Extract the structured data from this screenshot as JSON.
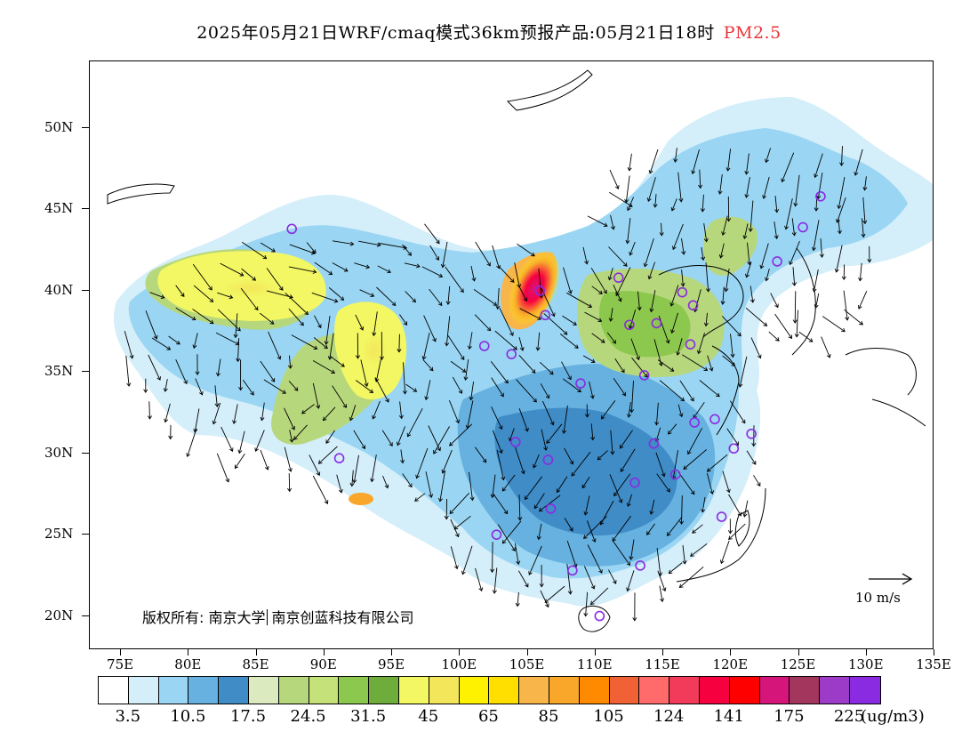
{
  "title": {
    "main": "2025年05月21日WRF/cmaq模式36km预报产品:05月21日18时",
    "product": "PM2.5"
  },
  "axes": {
    "lat_labels": [
      "50N",
      "45N",
      "40N",
      "35N",
      "30N",
      "25N",
      "20N"
    ],
    "lon_labels": [
      "75E",
      "80E",
      "85E",
      "90E",
      "95E",
      "100E",
      "105E",
      "110E",
      "115E",
      "120E",
      "125E",
      "130E",
      "135E"
    ]
  },
  "copyright": {
    "part1": "版权所有: 南京大学",
    "part2": "南京创蓝科技有限公司"
  },
  "wind_scale": {
    "label": "10 m/s"
  },
  "legend": {
    "colors": [
      "#ffffff",
      "#d4eefa",
      "#9ad6f3",
      "#66b1e0",
      "#3f8cc7",
      "#dbebbf",
      "#b7d77d",
      "#c5e17a",
      "#8cc84d",
      "#6ead3b",
      "#f2f763",
      "#f4e65a",
      "#fff200",
      "#ffdf00",
      "#f8b54a",
      "#f8a72b",
      "#ff8a00",
      "#f06235",
      "#ff6b6b",
      "#f23a5a",
      "#f70040",
      "#ff0000",
      "#d6157a",
      "#a3365c",
      "#9d3bc9",
      "#8a2be2"
    ],
    "tick_labels": [
      "3.5",
      "10.5",
      "17.5",
      "24.5",
      "31.5",
      "45",
      "65",
      "85",
      "105",
      "124",
      "141",
      "175",
      "225"
    ],
    "unit": "(ug/m3)"
  },
  "stations": [
    {
      "lon": 87.6,
      "lat": 43.8
    },
    {
      "lon": 91.1,
      "lat": 29.7
    },
    {
      "lon": 101.8,
      "lat": 36.6
    },
    {
      "lon": 103.8,
      "lat": 36.1
    },
    {
      "lon": 106.3,
      "lat": 38.5
    },
    {
      "lon": 111.7,
      "lat": 40.8
    },
    {
      "lon": 112.5,
      "lat": 37.9
    },
    {
      "lon": 114.5,
      "lat": 38.0
    },
    {
      "lon": 116.4,
      "lat": 39.9
    },
    {
      "lon": 117.2,
      "lat": 39.1
    },
    {
      "lon": 117.0,
      "lat": 36.7
    },
    {
      "lon": 113.6,
      "lat": 34.8
    },
    {
      "lon": 108.9,
      "lat": 34.3
    },
    {
      "lon": 104.1,
      "lat": 30.7
    },
    {
      "lon": 106.5,
      "lat": 29.6
    },
    {
      "lon": 106.7,
      "lat": 26.6
    },
    {
      "lon": 102.7,
      "lat": 25.0
    },
    {
      "lon": 108.3,
      "lat": 22.8
    },
    {
      "lon": 113.3,
      "lat": 23.1
    },
    {
      "lon": 110.3,
      "lat": 20.0
    },
    {
      "lon": 114.3,
      "lat": 30.6
    },
    {
      "lon": 112.9,
      "lat": 28.2
    },
    {
      "lon": 115.9,
      "lat": 28.7
    },
    {
      "lon": 117.3,
      "lat": 31.9
    },
    {
      "lon": 118.8,
      "lat": 32.1
    },
    {
      "lon": 120.2,
      "lat": 30.3
    },
    {
      "lon": 121.5,
      "lat": 31.2
    },
    {
      "lon": 119.3,
      "lat": 26.1
    },
    {
      "lon": 123.4,
      "lat": 41.8
    },
    {
      "lon": 125.3,
      "lat": 43.9
    },
    {
      "lon": 126.6,
      "lat": 45.8
    },
    {
      "lon": 105.9,
      "lat": 40.0
    }
  ]
}
